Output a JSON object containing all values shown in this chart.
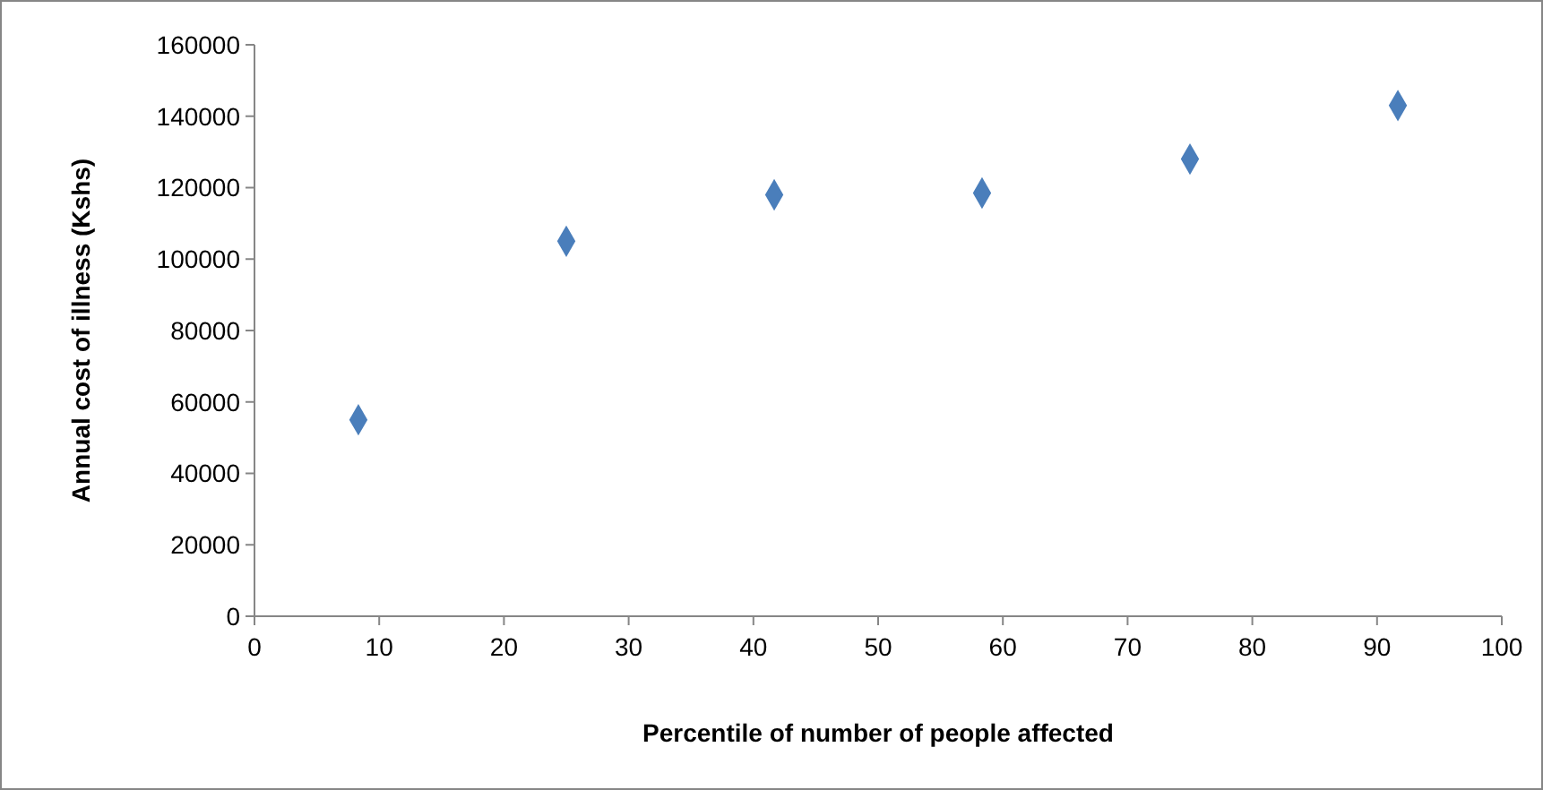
{
  "chart_data": {
    "type": "scatter",
    "xlabel": "Percentile of number of people affected",
    "ylabel": "Annual cost of illness (Kshs)",
    "x": [
      8.33,
      25,
      41.67,
      58.33,
      75,
      91.67
    ],
    "series": [
      {
        "color": "#4a7ebb",
        "values": [
          55000,
          105000,
          118000,
          118500,
          128000,
          143000
        ]
      }
    ],
    "xlim": [
      0,
      100
    ],
    "xticks": [
      0,
      10,
      20,
      30,
      40,
      50,
      60,
      70,
      80,
      90,
      100
    ],
    "ylim": [
      0,
      160000
    ],
    "yticks": [
      0,
      20000,
      40000,
      60000,
      80000,
      100000,
      120000,
      140000,
      160000
    ],
    "grid": false,
    "marker": "diamond"
  }
}
